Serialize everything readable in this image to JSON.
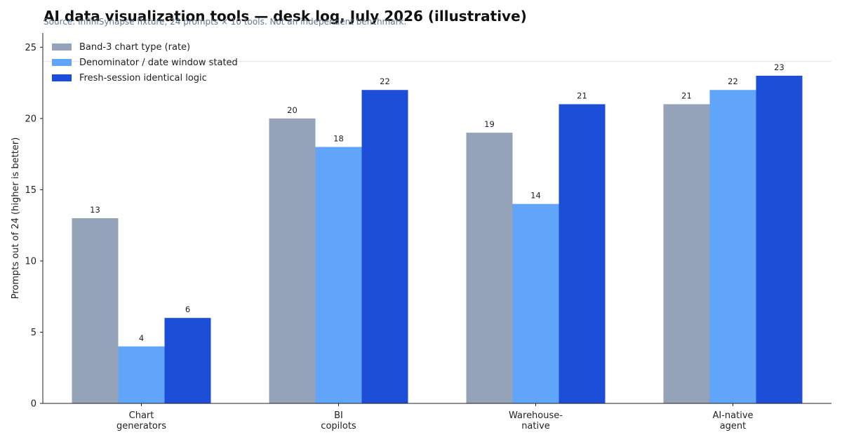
{
  "chart_data": {
    "type": "bar",
    "title": "AI data visualization tools — desk log, July 2026 (illustrative)",
    "subtitle": "Source: InfiniSynapse fixture, 24 prompts × 10 tools. Not an independent benchmark.",
    "categories": [
      [
        "Chart",
        "generators"
      ],
      [
        "BI",
        "copilots"
      ],
      [
        "Warehouse-",
        "native"
      ],
      [
        "AI-native",
        "agent"
      ]
    ],
    "series": [
      {
        "name": "Band-3 chart type (rate)",
        "color": "#94a3b8",
        "values": [
          13,
          20,
          19,
          21
        ]
      },
      {
        "name": "Denominator / date window stated",
        "color": "#60a5fa",
        "values": [
          4,
          18,
          14,
          22
        ]
      },
      {
        "name": "Fresh-session identical logic",
        "color": "#1d4ed8",
        "values": [
          6,
          22,
          21,
          23
        ]
      }
    ],
    "xlabel": "",
    "ylabel": "Prompts out of 24 (higher is better)",
    "ylim": [
      0,
      26
    ],
    "yticks": [
      0,
      5,
      10,
      15,
      20,
      25
    ],
    "reference_line": 24,
    "grid": false,
    "legend_position": "top-left",
    "data_labels": true
  }
}
